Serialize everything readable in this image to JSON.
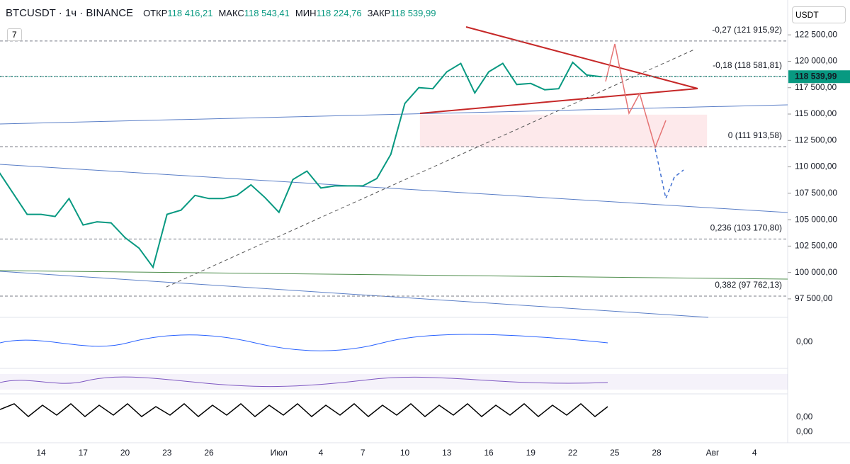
{
  "header": {
    "symbol": "BTCUSDT · 1ч · BINANCE",
    "ohlc": [
      {
        "key": "ОТКР",
        "value": "118 416,21"
      },
      {
        "key": "МАКС",
        "value": "118 543,41"
      },
      {
        "key": "МИН",
        "value": "118 224,76"
      },
      {
        "key": "ЗАКР",
        "value": "118 539,99"
      }
    ],
    "indicators_count": "7",
    "currency": "USDT"
  },
  "panes": {
    "macd_label": "0,00",
    "stoch_label": "0,00",
    "stoch_label_low": "0,00"
  },
  "chart_data": {
    "type": "line",
    "color": "#089981",
    "categories": [
      null,
      null,
      null,
      "14",
      null,
      null,
      "17",
      null,
      null,
      "20",
      null,
      null,
      "23",
      null,
      null,
      "26",
      null,
      null,
      null,
      null,
      "Июл",
      null,
      null,
      "4",
      null,
      null,
      "7",
      null,
      null,
      "10",
      null,
      null,
      "13",
      null,
      null,
      "16",
      null,
      null,
      "19",
      null,
      null,
      "22",
      null,
      null,
      "25",
      null,
      null,
      "28",
      null,
      null,
      null,
      "Авг",
      null,
      null,
      "4",
      null
    ],
    "series": [
      {
        "name": "BTCUSDT",
        "color": "#089981",
        "values": [
          109500,
          107500,
          105500,
          105500,
          105300,
          107000,
          104500,
          104800,
          104700,
          103300,
          102300,
          100500,
          105500,
          105900,
          107300,
          107000,
          107000,
          107300,
          108300,
          107100,
          105700,
          108800,
          109600,
          108000,
          108200,
          108200,
          108200,
          108900,
          111200,
          116000,
          117500,
          117400,
          119000,
          119800,
          117000,
          119000,
          119800,
          117800,
          117900,
          117300,
          117400,
          119900,
          118700,
          118540,
          null,
          null,
          null,
          null,
          null,
          null,
          null,
          null,
          null,
          null,
          null,
          null
        ]
      }
    ],
    "ylim": [
      95750,
      125800
    ],
    "yticks": [
      {
        "value": 97500,
        "label": "97 500,00"
      },
      {
        "value": 100000,
        "label": "100 000,00"
      },
      {
        "value": 102500,
        "label": "102 500,00"
      },
      {
        "value": 105000,
        "label": "105 000,00"
      },
      {
        "value": 107500,
        "label": "107 500,00"
      },
      {
        "value": 110000,
        "label": "110 000,00"
      },
      {
        "value": 112500,
        "label": "112 500,00"
      },
      {
        "value": 115000,
        "label": "115 000,00"
      },
      {
        "value": 117500,
        "label": "117 500,00"
      },
      {
        "value": 120000,
        "label": "120 000,00"
      },
      {
        "value": 122500,
        "label": "122 500,00"
      }
    ],
    "last_price": {
      "value": 118539.99,
      "label": "118 539,99"
    },
    "annotations": [
      {
        "text": "-0,27 (121 915,92)",
        "value": 121915.92
      },
      {
        "text": "-0,18 (118 581,81)",
        "value": 118581.81
      },
      {
        "text": "0 (111 913,58)",
        "value": 111913.58
      },
      {
        "text": "0,236 (103 170,80)",
        "value": 103170.8
      },
      {
        "text": "0,382 (97 762,13)",
        "value": 97762.13
      }
    ],
    "grid": false
  }
}
